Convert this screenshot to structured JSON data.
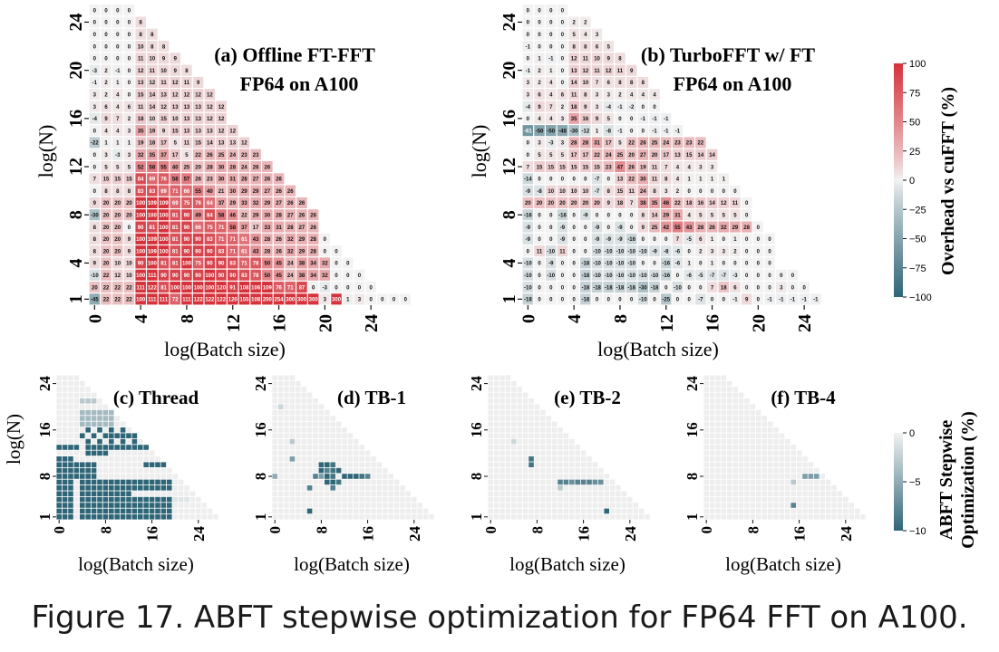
{
  "caption": "Figure 17. ABFT stepwise optimization for FP64 FFT on A100.",
  "colors": {
    "low": "#2f6677",
    "mid": "#f2f2f2",
    "high": "#d6323b"
  },
  "chart_data": [
    {
      "type": "heatmap",
      "title": "(a) Offline FT-FFT",
      "subtitle": "FP64 on A100",
      "xlabel": "log(Batch size)",
      "ylabel": "log(N)",
      "xticks": [
        "0",
        "4",
        "8",
        "12",
        "16",
        "20",
        "24"
      ],
      "yticks": [
        "1",
        "4",
        "8",
        "12",
        "16",
        "20",
        "24"
      ],
      "rows": [
        [
          -45,
          22,
          22,
          22,
          100,
          111,
          111,
          72,
          111,
          122,
          122,
          122,
          120,
          155,
          108,
          200,
          254,
          300,
          300,
          300,
          3,
          300,
          1,
          3,
          0,
          0,
          0,
          0
        ],
        [
          20,
          22,
          22,
          22,
          111,
          122,
          81,
          100,
          100,
          100,
          100,
          120,
          91,
          108,
          106,
          109,
          76,
          71,
          87,
          0,
          -3,
          0,
          0,
          0,
          0
        ],
        [
          -10,
          22,
          12,
          10,
          100,
          111,
          90,
          90,
          90,
          90,
          100,
          90,
          90,
          83,
          78,
          50,
          45,
          24,
          38,
          34,
          32,
          0,
          0,
          0
        ],
        [
          9,
          20,
          10,
          10,
          90,
          100,
          81,
          81,
          100,
          75,
          90,
          90,
          83,
          71,
          78,
          50,
          45,
          24,
          38,
          34,
          32,
          0,
          0
        ],
        [
          8,
          20,
          20,
          9,
          100,
          109,
          100,
          81,
          90,
          90,
          90,
          83,
          71,
          61,
          43,
          28,
          26,
          32,
          29,
          28,
          0,
          0
        ],
        [
          8,
          20,
          20,
          9,
          100,
          109,
          100,
          81,
          90,
          90,
          83,
          71,
          71,
          61,
          43,
          28,
          26,
          32,
          29,
          28,
          0
        ],
        [
          8,
          20,
          20,
          0,
          90,
          81,
          100,
          81,
          90,
          66,
          75,
          71,
          58,
          37,
          17,
          33,
          31,
          28,
          27,
          26
        ],
        [
          -30,
          20,
          20,
          20,
          100,
          100,
          100,
          81,
          90,
          49,
          84,
          58,
          46,
          22,
          29,
          30,
          28,
          27,
          26,
          26
        ],
        [
          9,
          20,
          20,
          20,
          100,
          109,
          109,
          69,
          75,
          76,
          64,
          37,
          29,
          33,
          32,
          29,
          27,
          26,
          26
        ],
        [
          0,
          8,
          8,
          8,
          83,
          83,
          69,
          71,
          66,
          55,
          40,
          21,
          30,
          29,
          29,
          27,
          26,
          26
        ],
        [
          7,
          15,
          15,
          15,
          84,
          69,
          76,
          58,
          57,
          26,
          23,
          30,
          31,
          28,
          27,
          26,
          26
        ],
        [
          0,
          5,
          5,
          5,
          52,
          58,
          55,
          40,
          25,
          20,
          28,
          30,
          28,
          24,
          26,
          26
        ],
        [
          0,
          3,
          -3,
          3,
          32,
          35,
          37,
          17,
          5,
          22,
          26,
          25,
          24,
          23,
          23
        ],
        [
          -22,
          1,
          1,
          1,
          19,
          18,
          17,
          5,
          11,
          15,
          14,
          13,
          13,
          12
        ],
        [
          0,
          4,
          4,
          3,
          35,
          19,
          9,
          15,
          13,
          13,
          13,
          12,
          12
        ],
        [
          -4,
          9,
          7,
          2,
          18,
          10,
          15,
          10,
          13,
          13,
          12,
          12
        ],
        [
          3,
          6,
          4,
          6,
          11,
          14,
          12,
          13,
          13,
          13,
          12,
          12
        ],
        [
          3,
          2,
          4,
          0,
          15,
          14,
          13,
          12,
          12,
          12,
          12
        ],
        [
          -1,
          2,
          1,
          0,
          13,
          12,
          11,
          12,
          11,
          9
        ],
        [
          -3,
          2,
          -1,
          0,
          12,
          11,
          10,
          9,
          8
        ],
        [
          0,
          0,
          0,
          0,
          11,
          10,
          9,
          9
        ],
        [
          0,
          0,
          0,
          0,
          10,
          8,
          8
        ],
        [
          0,
          0,
          0,
          0,
          8,
          8
        ],
        [
          0,
          0,
          0,
          0,
          8
        ],
        [
          0,
          0,
          0,
          0
        ]
      ],
      "show_values": true,
      "colorbar": {
        "label": "Overhead vs cuFFT (%)",
        "ticks": [
          "100",
          "75",
          "50",
          "25",
          "0",
          "−25",
          "−50",
          "−75",
          "−100"
        ],
        "range": [
          -100,
          100
        ]
      }
    },
    {
      "type": "heatmap",
      "title": "(b) TurboFFT w/ FT",
      "subtitle": "FP64 on A100",
      "xlabel": "log(Batch size)",
      "ylabel": "log(N)",
      "xticks": [
        "0",
        "4",
        "8",
        "12",
        "16",
        "20",
        "24"
      ],
      "yticks": [
        "1",
        "4",
        "8",
        "12",
        "16",
        "20",
        "24"
      ],
      "rows": [
        [
          -18,
          0,
          0,
          0,
          0,
          -18,
          0,
          0,
          0,
          0,
          -10,
          0,
          -25,
          0,
          0,
          -7,
          0,
          0,
          -1,
          9,
          0,
          -1,
          -1,
          -1,
          -1,
          -1
        ],
        [
          -10,
          0,
          0,
          0,
          0,
          -18,
          -18,
          -18,
          -18,
          -18,
          -30,
          -18,
          0,
          -10,
          0,
          0,
          7,
          18,
          6,
          0,
          0,
          0,
          3,
          0,
          0
        ],
        [
          -10,
          0,
          -10,
          0,
          0,
          -18,
          -10,
          -10,
          -10,
          -10,
          -10,
          -10,
          -16,
          0,
          -6,
          -5,
          -7,
          -7,
          -3,
          0,
          0,
          0,
          0,
          0
        ],
        [
          -10,
          0,
          -9,
          0,
          0,
          -18,
          -10,
          -10,
          -10,
          -10,
          0,
          0,
          -16,
          -6,
          1,
          0,
          1,
          0,
          0,
          0,
          0,
          0
        ],
        [
          0,
          11,
          -10,
          11,
          0,
          0,
          -10,
          -10,
          -10,
          -10,
          -10,
          -9,
          -8,
          -6,
          0,
          2,
          3,
          3,
          2,
          0,
          0,
          0
        ],
        [
          -9,
          0,
          0,
          -9,
          0,
          0,
          -9,
          -9,
          -9,
          -16,
          0,
          0,
          0,
          7,
          -5,
          6,
          1,
          0,
          1,
          0,
          0,
          0
        ],
        [
          -9,
          0,
          0,
          -9,
          0,
          0,
          -9,
          0,
          -9,
          0,
          9,
          25,
          42,
          55,
          43,
          28,
          26,
          32,
          29,
          28,
          0
        ],
        [
          -16,
          0,
          0,
          -16,
          0,
          -9,
          0,
          0,
          0,
          0,
          8,
          14,
          29,
          31,
          4,
          5,
          5,
          5,
          5,
          0
        ],
        [
          20,
          20,
          20,
          20,
          20,
          20,
          20,
          9,
          18,
          7,
          38,
          35,
          46,
          22,
          18,
          16,
          14,
          12,
          11,
          0
        ],
        [
          -9,
          -8,
          10,
          10,
          10,
          10,
          -7,
          8,
          15,
          11,
          24,
          8,
          3,
          2,
          0,
          0,
          0,
          0,
          0
        ],
        [
          -14,
          0,
          0,
          0,
          0,
          0,
          -7,
          0,
          13,
          22,
          30,
          11,
          8,
          4,
          1,
          1,
          1,
          1
        ],
        [
          7,
          15,
          15,
          15,
          15,
          15,
          15,
          23,
          47,
          26,
          19,
          11,
          7,
          4,
          4,
          3,
          3
        ],
        [
          0,
          5,
          5,
          5,
          17,
          17,
          22,
          24,
          25,
          20,
          27,
          20,
          17,
          13,
          15,
          14,
          14
        ],
        [
          0,
          3,
          -3,
          3,
          28,
          28,
          31,
          17,
          5,
          22,
          26,
          25,
          24,
          23,
          23,
          22
        ],
        [
          -61,
          -50,
          -50,
          -48,
          -30,
          -12,
          1,
          -8,
          -1,
          0,
          0,
          -1,
          -1,
          -1
        ],
        [
          0,
          4,
          4,
          3,
          35,
          16,
          9,
          5,
          0,
          0,
          -1,
          -1,
          -1
        ],
        [
          -4,
          9,
          7,
          2,
          18,
          9,
          3,
          -4,
          -1,
          -2,
          0,
          0
        ],
        [
          3,
          6,
          4,
          6,
          11,
          8,
          3,
          3,
          2,
          4,
          4,
          4
        ],
        [
          3,
          2,
          4,
          0,
          14,
          10,
          7,
          6,
          8,
          8,
          8
        ],
        [
          -1,
          2,
          1,
          0,
          13,
          12,
          11,
          12,
          11,
          9
        ],
        [
          0,
          1,
          -1,
          0,
          12,
          11,
          10,
          9,
          8
        ],
        [
          -1,
          0,
          0,
          0,
          8,
          8,
          6,
          5
        ],
        [
          0,
          0,
          0,
          0,
          5,
          4,
          3
        ],
        [
          0,
          0,
          0,
          0,
          2,
          2
        ],
        [
          0,
          0,
          0,
          0
        ]
      ],
      "show_values": true
    },
    {
      "type": "heatmap",
      "title": "(c) Thread",
      "xlabel": "log(Batch size)",
      "ylabel": "log(N)",
      "xticks": [
        "0",
        "8",
        "16",
        "24"
      ],
      "yticks": [
        "1",
        "8",
        "16",
        "24"
      ],
      "region_range": [
        -10,
        0
      ],
      "description_values": "cells at -10 where optimization applies, else 0",
      "colorbar": {
        "label": "ABFT Stepwise Optimization (%)",
        "ticks": [
          "0",
          "−5",
          "−10"
        ],
        "range": [
          -10,
          0
        ]
      }
    },
    {
      "type": "heatmap",
      "title": "(d) TB-1",
      "xlabel": "log(Batch size)",
      "xticks": [
        "0",
        "8",
        "16",
        "24"
      ],
      "yticks": [
        "1",
        "8",
        "16",
        "24"
      ]
    },
    {
      "type": "heatmap",
      "title": "(e) TB-2",
      "xlabel": "log(Batch size)",
      "xticks": [
        "0",
        "8",
        "16",
        "24"
      ],
      "yticks": [
        "1",
        "8",
        "16",
        "24"
      ]
    },
    {
      "type": "heatmap",
      "title": "(f) TB-4",
      "xlabel": "log(Batch size)",
      "xticks": [
        "0",
        "8",
        "16",
        "24"
      ],
      "yticks": [
        "1",
        "8",
        "16",
        "24"
      ]
    }
  ]
}
